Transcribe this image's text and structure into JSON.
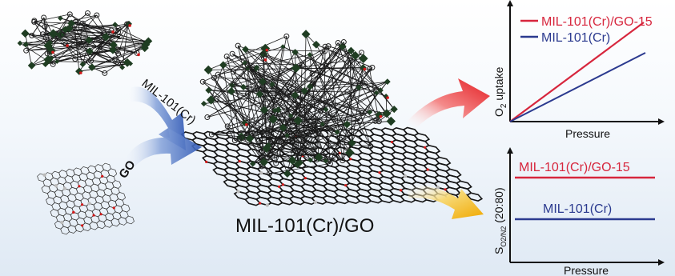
{
  "labels": {
    "mof_arrow": "MIL-101(Cr)",
    "go_arrow": "GO",
    "composite": "MIL-101(Cr)/GO"
  },
  "top_chart": {
    "ylabel_main": "O",
    "ylabel_sub": "2",
    "ylabel_rest": " uptake",
    "xlabel": "Pressure",
    "legend": [
      {
        "name": "MIL-101(Cr)/GO-15",
        "color": "#d7263d"
      },
      {
        "name": "MIL-101(Cr)",
        "color": "#2b3a8f"
      }
    ]
  },
  "bottom_chart": {
    "ylabel_a": "S",
    "ylabel_sub": "O2/N2",
    "ylabel_b": " (20:80)",
    "xlabel": "Pressure",
    "series": [
      {
        "name": "MIL-101(Cr)/GO-15",
        "color": "#d7263d"
      },
      {
        "name": "MIL-101(Cr)",
        "color": "#2b3a8f"
      }
    ]
  },
  "colors": {
    "mof_green": "#1f3d22",
    "arrow_blue": "#3a62b8",
    "arrow_red": "#e8242a",
    "arrow_yellow": "#f0b400",
    "oxygen_red": "#d21a1a"
  }
}
